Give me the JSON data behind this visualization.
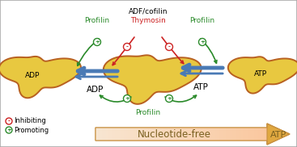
{
  "bg_color": "#f0f0f0",
  "border_color": "#aaaaaa",
  "actin_fill": "#e8c840",
  "actin_edge": "#b86020",
  "arrow_blue": "#4a7ab5",
  "arrow_green": "#2a8a2a",
  "arrow_red": "#cc2222",
  "text_adp_left": "ADP",
  "text_adp_center": "ADP",
  "text_atp_center": "ATP",
  "text_atp_right": "ATP",
  "text_adfcofilin": "ADF/cofilin",
  "text_thymosin": "Thymosin",
  "text_profilin_left": "Profilin",
  "text_profilin_right": "Profilin",
  "text_profilin_bottom": "Profilin",
  "text_inhibiting": "Inhibiting",
  "text_promoting": "Promoting",
  "text_nucleotide_free": "Nucleotide-free",
  "text_atp_gradient": "ATP",
  "font_size_labels": 6.5,
  "font_size_legend": 6,
  "font_size_gradient": 8.5,
  "fig_w": 3.67,
  "fig_h": 1.82,
  "dpi": 100
}
